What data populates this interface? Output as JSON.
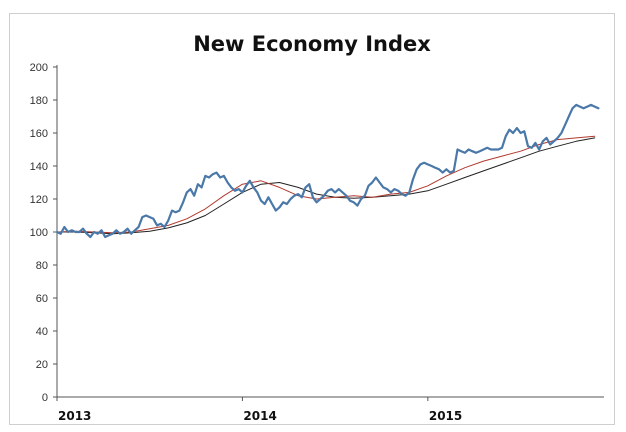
{
  "chart_data": {
    "type": "line",
    "title": "New Economy Index",
    "xlabel": "",
    "ylabel": "",
    "ylim": [
      0,
      200
    ],
    "yticks": [
      0,
      20,
      40,
      60,
      80,
      100,
      120,
      140,
      160,
      180,
      200
    ],
    "x_tick_labels": [
      "2013",
      "2014",
      "2015"
    ],
    "x_tick_positions": [
      0,
      1,
      2
    ],
    "xlim": [
      0,
      2.95
    ],
    "grid": false,
    "legend": "none",
    "colors": {
      "index": "#4a78a8",
      "ma_short": "#b03a2e",
      "ma_long": "#222222"
    },
    "series": [
      {
        "key": "index",
        "x": [
          0.0,
          0.02,
          0.04,
          0.06,
          0.08,
          0.1,
          0.12,
          0.14,
          0.16,
          0.18,
          0.2,
          0.22,
          0.24,
          0.26,
          0.28,
          0.3,
          0.32,
          0.34,
          0.36,
          0.38,
          0.4,
          0.42,
          0.44,
          0.46,
          0.48,
          0.5,
          0.52,
          0.54,
          0.56,
          0.58,
          0.6,
          0.62,
          0.64,
          0.66,
          0.68,
          0.7,
          0.72,
          0.74,
          0.76,
          0.78,
          0.8,
          0.82,
          0.84,
          0.86,
          0.88,
          0.9,
          0.92,
          0.94,
          0.96,
          0.98,
          1.0,
          1.02,
          1.04,
          1.06,
          1.08,
          1.1,
          1.12,
          1.14,
          1.16,
          1.18,
          1.2,
          1.22,
          1.24,
          1.26,
          1.28,
          1.3,
          1.32,
          1.34,
          1.36,
          1.38,
          1.4,
          1.42,
          1.44,
          1.46,
          1.48,
          1.5,
          1.52,
          1.54,
          1.56,
          1.58,
          1.6,
          1.62,
          1.64,
          1.66,
          1.68,
          1.7,
          1.72,
          1.74,
          1.76,
          1.78,
          1.8,
          1.82,
          1.84,
          1.86,
          1.88,
          1.9,
          1.92,
          1.94,
          1.96,
          1.98,
          2.0,
          2.02,
          2.04,
          2.06,
          2.08,
          2.1,
          2.12,
          2.14,
          2.16,
          2.18,
          2.2,
          2.22,
          2.24,
          2.26,
          2.28,
          2.3,
          2.32,
          2.34,
          2.36,
          2.38,
          2.4,
          2.42,
          2.44,
          2.46,
          2.48,
          2.5,
          2.52,
          2.54,
          2.56,
          2.58,
          2.6,
          2.62,
          2.64,
          2.66,
          2.68,
          2.7,
          2.72,
          2.74,
          2.76,
          2.78,
          2.8,
          2.82,
          2.84,
          2.86,
          2.88,
          2.9,
          2.92
        ],
        "values": [
          100,
          99,
          103,
          100,
          101,
          100,
          100,
          102,
          99,
          97,
          100,
          99,
          101,
          97,
          98,
          99,
          101,
          99,
          100,
          102,
          99,
          101,
          103,
          109,
          110,
          109,
          108,
          104,
          105,
          103,
          107,
          113,
          112,
          113,
          118,
          124,
          126,
          122,
          129,
          127,
          134,
          133,
          135,
          136,
          133,
          134,
          130,
          127,
          125,
          126,
          124,
          128,
          131,
          127,
          124,
          119,
          117,
          121,
          117,
          113,
          115,
          118,
          117,
          120,
          122,
          123,
          121,
          127,
          129,
          121,
          118,
          120,
          122,
          125,
          126,
          124,
          126,
          124,
          122,
          119,
          118,
          116,
          120,
          122,
          128,
          130,
          133,
          130,
          127,
          126,
          124,
          126,
          125,
          123,
          122,
          124,
          132,
          138,
          141,
          142,
          141,
          140,
          139,
          138,
          136,
          138,
          136,
          137,
          150,
          149,
          148,
          150,
          149,
          148,
          149,
          150,
          151,
          150,
          150,
          150,
          151,
          158,
          162,
          160,
          163,
          160,
          161,
          152,
          151,
          154,
          150,
          155,
          157,
          153,
          155,
          157,
          160,
          165,
          170,
          175,
          177,
          176,
          175,
          176,
          177,
          176,
          175
        ]
      },
      {
        "key": "ma_short",
        "x": [
          0.0,
          0.1,
          0.2,
          0.3,
          0.4,
          0.5,
          0.6,
          0.7,
          0.8,
          0.9,
          1.0,
          1.1,
          1.2,
          1.3,
          1.4,
          1.5,
          1.6,
          1.7,
          1.8,
          1.9,
          2.0,
          2.1,
          2.2,
          2.3,
          2.4,
          2.5,
          2.6,
          2.7,
          2.8,
          2.9
        ],
        "values": [
          100,
          100.5,
          100,
          99.5,
          100,
          102,
          104,
          108,
          114,
          122,
          129,
          131,
          127,
          122,
          120,
          121,
          122,
          121,
          123,
          124,
          128,
          134,
          139,
          143,
          146,
          149,
          153,
          156,
          157,
          158
        ]
      },
      {
        "key": "ma_long",
        "x": [
          0.0,
          0.1,
          0.2,
          0.3,
          0.4,
          0.5,
          0.6,
          0.7,
          0.8,
          0.9,
          1.0,
          1.1,
          1.2,
          1.3,
          1.4,
          1.5,
          1.6,
          1.7,
          1.8,
          1.9,
          2.0,
          2.1,
          2.2,
          2.3,
          2.4,
          2.5,
          2.6,
          2.7,
          2.8,
          2.9
        ],
        "values": [
          100,
          100,
          99.5,
          99,
          99.5,
          100.5,
          102.5,
          105.5,
          110,
          117,
          124,
          129,
          130,
          127,
          123,
          121,
          120.5,
          121,
          122,
          123,
          125,
          129,
          133,
          137,
          141,
          145,
          149,
          152,
          155,
          157
        ]
      }
    ]
  }
}
